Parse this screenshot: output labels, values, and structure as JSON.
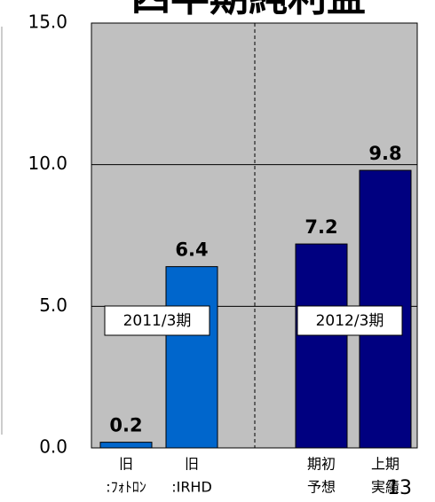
{
  "chart_data": {
    "type": "bar",
    "title": "四半期純利益",
    "categories": [
      [
        "旧",
        ":ﾌｫﾄﾛﾝ"
      ],
      [
        "旧",
        ":IRHD"
      ],
      [
        "期初",
        "予想"
      ],
      [
        "上期",
        "実績"
      ]
    ],
    "values": [
      0.2,
      6.4,
      7.2,
      9.8
    ],
    "colors": [
      "#0066cc",
      "#0066cc",
      "#000080",
      "#000080"
    ],
    "ylim": [
      0,
      15
    ],
    "yticks": [
      {
        "value": 0,
        "label": "0.0"
      },
      {
        "value": 5,
        "label": "5.0"
      },
      {
        "value": 10,
        "label": "10.0"
      },
      {
        "value": 15,
        "label": "15.0"
      }
    ],
    "grid": true,
    "annotations": [
      "2011/3期",
      "2012/3期"
    ],
    "page_number": "13"
  }
}
